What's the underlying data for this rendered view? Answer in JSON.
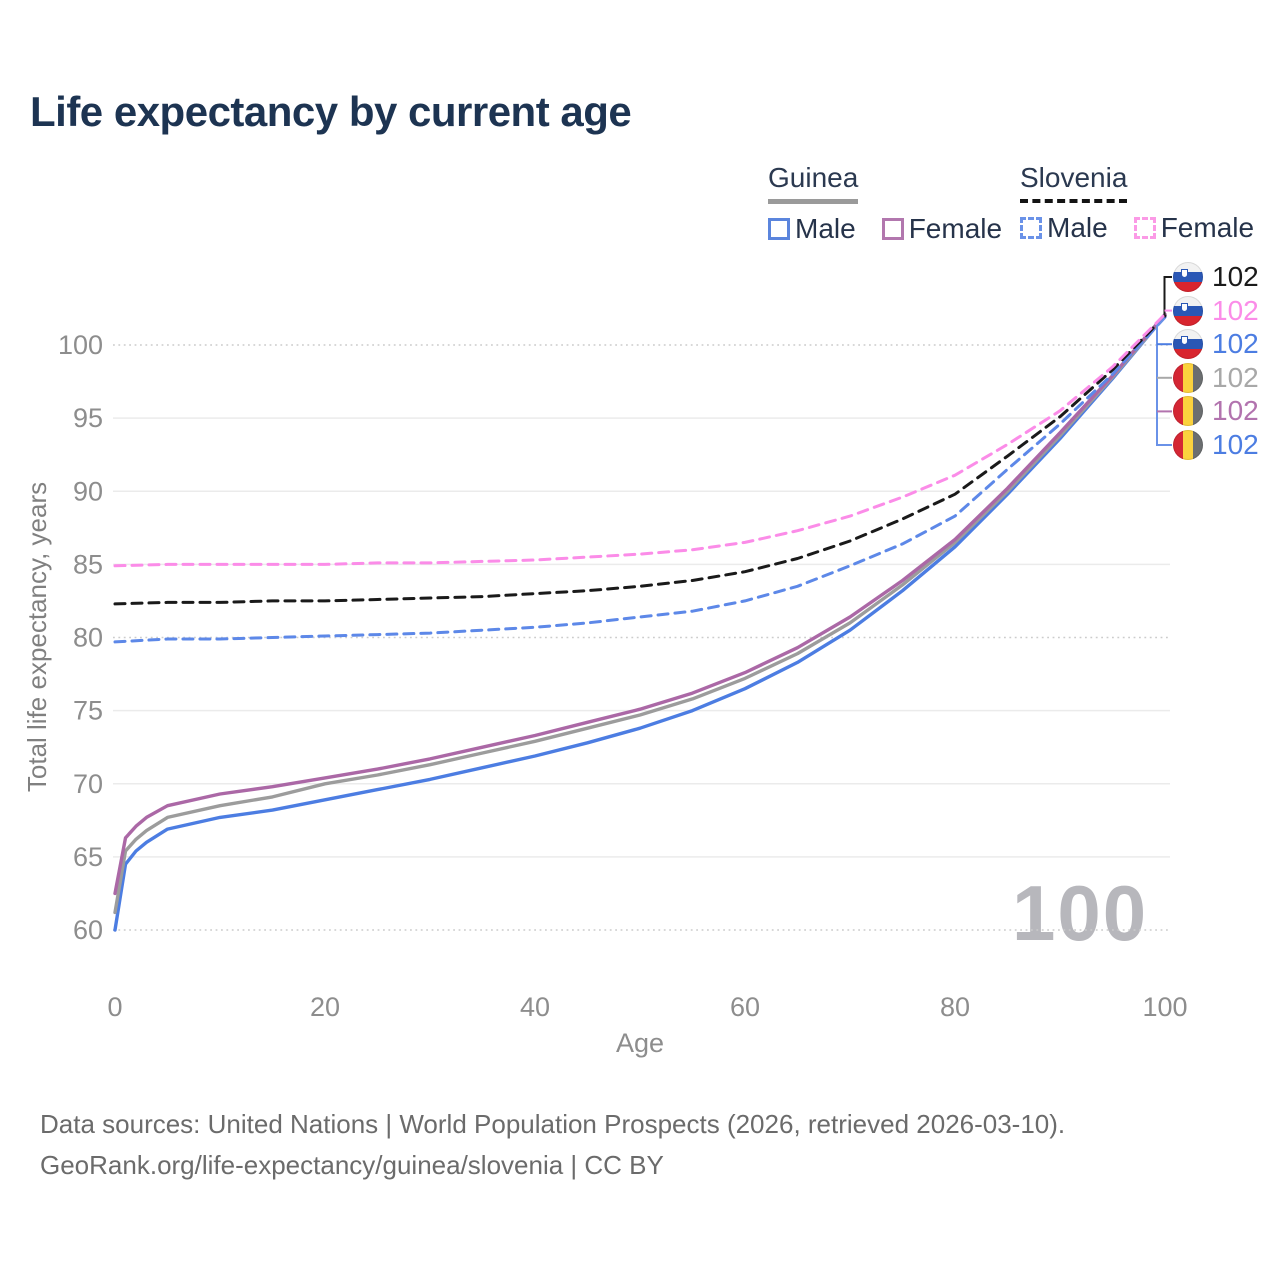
{
  "title": "Life expectancy by current age",
  "legend": {
    "groups": [
      {
        "name": "Guinea",
        "line_style": "solid",
        "items": [
          {
            "label": "Male",
            "color": "#5b85dd"
          },
          {
            "label": "Female",
            "color": "#b277ae"
          }
        ]
      },
      {
        "name": "Slovenia",
        "line_style": "dashed",
        "items": [
          {
            "label": "Male",
            "color": "#6a92e8"
          },
          {
            "label": "Female",
            "color": "#fb9ae6"
          }
        ]
      }
    ]
  },
  "watermark": "100",
  "footer": {
    "line1": "Data sources: United Nations | World Population Prospects (2026, retrieved 2026-03-10).",
    "line2": "GeoRank.org/life-expectancy/guinea/slovenia | CC BY"
  },
  "flags": {
    "slovenia": {
      "orientation": "horizontal",
      "stripes": [
        "#f2f2f2",
        "#2a57b5",
        "#d8252e"
      ]
    },
    "guinea": {
      "orientation": "vertical",
      "stripes": [
        "#d42634",
        "#fbd23e",
        "#6b6e70"
      ]
    }
  },
  "end_labels": [
    {
      "flag": "slovenia",
      "series": "Slovenia Both sexes",
      "value": "102",
      "color": "#1a1a1a"
    },
    {
      "flag": "slovenia",
      "series": "Slovenia Female",
      "value": "102",
      "color": "#fb8ce8"
    },
    {
      "flag": "slovenia",
      "series": "Slovenia Male",
      "value": "102",
      "color": "#4c7de2"
    },
    {
      "flag": "guinea",
      "series": "Guinea Both sexes",
      "value": "102",
      "color": "#a8a8a8"
    },
    {
      "flag": "guinea",
      "series": "Guinea Female",
      "value": "102",
      "color": "#b273ae"
    },
    {
      "flag": "guinea",
      "series": "Guinea Male",
      "value": "102",
      "color": "#4c7de2"
    }
  ],
  "chart_data": {
    "type": "line",
    "title": "Life expectancy by current age",
    "xlabel": "Age",
    "ylabel": "Total life expectancy, years",
    "xlim": [
      0,
      100
    ],
    "ylim": [
      60,
      103
    ],
    "x_ticks": [
      0,
      20,
      40,
      60,
      80,
      100
    ],
    "y_ticks": [
      60,
      65,
      70,
      75,
      80,
      85,
      90,
      95,
      100
    ],
    "dotted_gridlines": [
      60,
      80,
      100
    ],
    "grid": true,
    "legend_position": "top-right",
    "series": [
      {
        "name": "Guinea Male",
        "country": "Guinea",
        "sex": "Male",
        "color": "#4c7de2",
        "dashed": false,
        "points": [
          [
            0,
            60
          ],
          [
            1,
            64.5
          ],
          [
            2,
            65.4
          ],
          [
            3,
            66
          ],
          [
            5,
            66.9
          ],
          [
            10,
            67.7
          ],
          [
            15,
            68.2
          ],
          [
            20,
            68.9
          ],
          [
            25,
            69.6
          ],
          [
            30,
            70.3
          ],
          [
            35,
            71.1
          ],
          [
            40,
            71.9
          ],
          [
            45,
            72.8
          ],
          [
            50,
            73.8
          ],
          [
            55,
            75
          ],
          [
            60,
            76.5
          ],
          [
            65,
            78.3
          ],
          [
            70,
            80.5
          ],
          [
            75,
            83.2
          ],
          [
            80,
            86.2
          ],
          [
            85,
            89.8
          ],
          [
            90,
            93.6
          ],
          [
            95,
            97.7
          ],
          [
            100,
            102
          ]
        ]
      },
      {
        "name": "Guinea Both sexes",
        "country": "Guinea",
        "sex": "Both",
        "color": "#9c9c9c",
        "dashed": false,
        "points": [
          [
            0,
            61.2
          ],
          [
            1,
            65.4
          ],
          [
            2,
            66.2
          ],
          [
            3,
            66.8
          ],
          [
            5,
            67.7
          ],
          [
            10,
            68.5
          ],
          [
            15,
            69.1
          ],
          [
            20,
            70
          ],
          [
            25,
            70.6
          ],
          [
            30,
            71.3
          ],
          [
            35,
            72.1
          ],
          [
            40,
            72.9
          ],
          [
            45,
            73.8
          ],
          [
            50,
            74.7
          ],
          [
            55,
            75.8
          ],
          [
            60,
            77.2
          ],
          [
            65,
            78.9
          ],
          [
            70,
            81
          ],
          [
            75,
            83.6
          ],
          [
            80,
            86.5
          ],
          [
            85,
            90
          ],
          [
            90,
            93.8
          ],
          [
            95,
            97.8
          ],
          [
            100,
            102
          ]
        ]
      },
      {
        "name": "Guinea Female",
        "country": "Guinea",
        "sex": "Female",
        "color": "#ab68a6",
        "dashed": false,
        "points": [
          [
            0,
            62.5
          ],
          [
            1,
            66.3
          ],
          [
            2,
            67.1
          ],
          [
            3,
            67.7
          ],
          [
            5,
            68.5
          ],
          [
            10,
            69.3
          ],
          [
            15,
            69.8
          ],
          [
            20,
            70.4
          ],
          [
            25,
            71
          ],
          [
            30,
            71.7
          ],
          [
            35,
            72.5
          ],
          [
            40,
            73.3
          ],
          [
            45,
            74.2
          ],
          [
            50,
            75.1
          ],
          [
            55,
            76.2
          ],
          [
            60,
            77.6
          ],
          [
            65,
            79.3
          ],
          [
            70,
            81.4
          ],
          [
            75,
            83.9
          ],
          [
            80,
            86.7
          ],
          [
            85,
            90.2
          ],
          [
            90,
            94
          ],
          [
            95,
            97.9
          ],
          [
            100,
            102.1
          ]
        ]
      },
      {
        "name": "Slovenia Male",
        "country": "Slovenia",
        "sex": "Male",
        "color": "#5d88e8",
        "dashed": true,
        "points": [
          [
            0,
            79.7
          ],
          [
            5,
            79.9
          ],
          [
            10,
            79.9
          ],
          [
            15,
            80
          ],
          [
            20,
            80.1
          ],
          [
            25,
            80.2
          ],
          [
            30,
            80.3
          ],
          [
            35,
            80.5
          ],
          [
            40,
            80.7
          ],
          [
            45,
            81
          ],
          [
            50,
            81.4
          ],
          [
            55,
            81.8
          ],
          [
            60,
            82.5
          ],
          [
            65,
            83.5
          ],
          [
            70,
            84.9
          ],
          [
            75,
            86.4
          ],
          [
            80,
            88.3
          ],
          [
            85,
            91.5
          ],
          [
            90,
            94.6
          ],
          [
            95,
            98
          ],
          [
            100,
            101.9
          ]
        ]
      },
      {
        "name": "Slovenia Both sexes",
        "country": "Slovenia",
        "sex": "Both",
        "color": "#1a1a1a",
        "dashed": true,
        "points": [
          [
            0,
            82.3
          ],
          [
            5,
            82.4
          ],
          [
            10,
            82.4
          ],
          [
            15,
            82.5
          ],
          [
            20,
            82.5
          ],
          [
            25,
            82.6
          ],
          [
            30,
            82.7
          ],
          [
            35,
            82.8
          ],
          [
            40,
            83
          ],
          [
            45,
            83.2
          ],
          [
            50,
            83.5
          ],
          [
            55,
            83.9
          ],
          [
            60,
            84.5
          ],
          [
            65,
            85.4
          ],
          [
            70,
            86.6
          ],
          [
            75,
            88.1
          ],
          [
            80,
            89.8
          ],
          [
            85,
            92.4
          ],
          [
            90,
            95.1
          ],
          [
            95,
            98.3
          ],
          [
            100,
            102
          ]
        ]
      },
      {
        "name": "Slovenia Female",
        "country": "Slovenia",
        "sex": "Female",
        "color": "#fb8ce8",
        "dashed": true,
        "points": [
          [
            0,
            84.9
          ],
          [
            5,
            85
          ],
          [
            10,
            85
          ],
          [
            15,
            85
          ],
          [
            20,
            85
          ],
          [
            25,
            85.1
          ],
          [
            30,
            85.1
          ],
          [
            35,
            85.2
          ],
          [
            40,
            85.3
          ],
          [
            45,
            85.5
          ],
          [
            50,
            85.7
          ],
          [
            55,
            86
          ],
          [
            60,
            86.5
          ],
          [
            65,
            87.3
          ],
          [
            70,
            88.3
          ],
          [
            75,
            89.6
          ],
          [
            80,
            91.1
          ],
          [
            85,
            93.2
          ],
          [
            90,
            95.5
          ],
          [
            95,
            98.5
          ],
          [
            100,
            102.1
          ]
        ]
      }
    ]
  }
}
